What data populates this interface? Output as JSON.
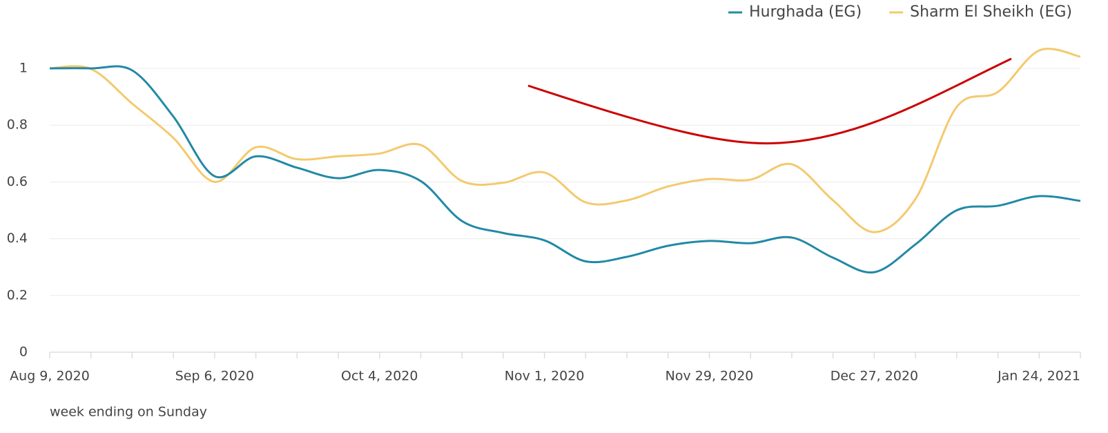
{
  "chart_data": {
    "type": "line",
    "x_label": "week ending on Sunday",
    "categories": [
      "Aug 9, 2020",
      null,
      null,
      null,
      "Sep 6, 2020",
      null,
      null,
      null,
      "Oct 4, 2020",
      null,
      null,
      null,
      "Nov 1, 2020",
      null,
      null,
      null,
      "Nov 29, 2020",
      null,
      null,
      null,
      "Dec 27, 2020",
      null,
      null,
      null,
      "Jan 24, 2021",
      null
    ],
    "series": [
      {
        "name": "Hurghada (EG)",
        "color": "#2189a6",
        "values": [
          1.0,
          1.0,
          0.993,
          0.83,
          0.62,
          0.69,
          0.65,
          0.613,
          0.642,
          0.603,
          0.462,
          0.42,
          0.394,
          0.32,
          0.336,
          0.375,
          0.392,
          0.384,
          0.404,
          0.333,
          0.282,
          0.38,
          0.5,
          0.516,
          0.55,
          0.533
        ]
      },
      {
        "name": "Sharm El Sheikh (EG)",
        "color": "#f4c96d",
        "values": [
          1.0,
          0.998,
          0.876,
          0.755,
          0.6,
          0.722,
          0.68,
          0.69,
          0.7,
          0.73,
          0.603,
          0.597,
          0.633,
          0.528,
          0.535,
          0.584,
          0.61,
          0.608,
          0.662,
          0.535,
          0.423,
          0.54,
          0.864,
          0.917,
          1.063,
          1.041
        ]
      }
    ],
    "ylim": [
      0,
      1.1
    ],
    "yticks": [
      0,
      0.2,
      0.4,
      0.6,
      0.8,
      1
    ],
    "grid": true,
    "legend": "top-right"
  }
}
